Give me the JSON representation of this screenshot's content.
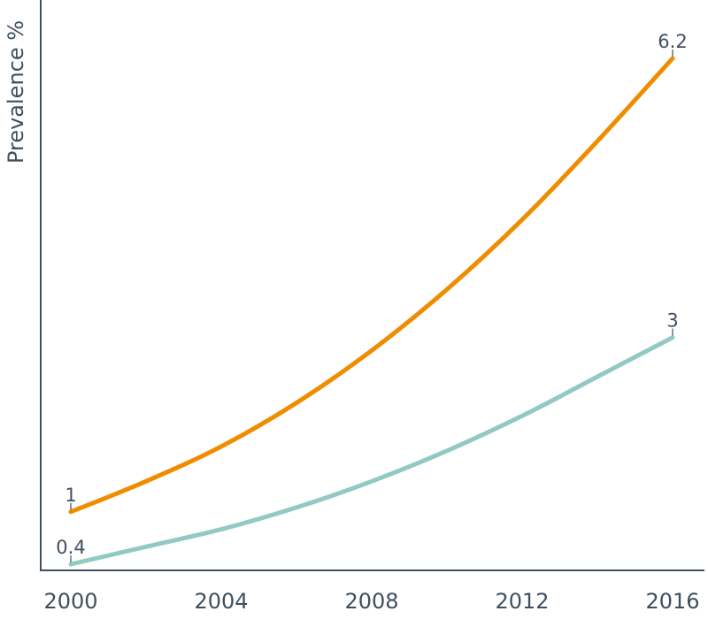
{
  "chart_data": {
    "type": "line",
    "title": "",
    "xlabel": "",
    "ylabel": "Prevalence %",
    "x_ticks": [
      "2000",
      "2004",
      "2008",
      "2012",
      "2016"
    ],
    "xlim": [
      2000,
      2016
    ],
    "ylim": [
      0.4,
      6.2
    ],
    "grid": false,
    "legend": "none",
    "series": [
      {
        "color": "#ef8c00",
        "x": [
          2000,
          2002,
          2004,
          2006,
          2008,
          2010,
          2012,
          2014,
          2016
        ],
        "values": [
          1.0,
          1.35,
          1.75,
          2.25,
          2.85,
          3.55,
          4.35,
          5.25,
          6.2
        ],
        "start_label": "1",
        "end_label": "6.2"
      },
      {
        "color": "#93c9c5",
        "x": [
          2000,
          2002,
          2004,
          2006,
          2008,
          2010,
          2012,
          2014,
          2016
        ],
        "values": [
          0.4,
          0.6,
          0.8,
          1.05,
          1.35,
          1.7,
          2.1,
          2.55,
          3.0
        ],
        "start_label": "0.4",
        "end_label": "3"
      }
    ]
  }
}
